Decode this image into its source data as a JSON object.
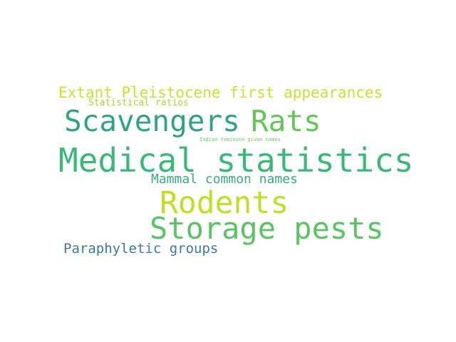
{
  "word_cloud": {
    "words": [
      {
        "text": "Extant Pleistocene first appearances",
        "color": "#c8df39"
      },
      {
        "text": "Statistical ratios",
        "color": "#a7d43e"
      },
      {
        "text": "Scavengers",
        "color": "#31a384"
      },
      {
        "text": "Rats",
        "color": "#67c45a"
      },
      {
        "text": "Indian feminine given names",
        "color": "#6fcb5b"
      },
      {
        "text": "Medical statistics",
        "color": "#3db779"
      },
      {
        "text": "Mammal common names",
        "color": "#3aa97f"
      },
      {
        "text": "Rodents",
        "color": "#bddf2a"
      },
      {
        "text": "Storage pests",
        "color": "#5cc266"
      },
      {
        "text": "Paraphyletic groups",
        "color": "#3f7a98"
      }
    ]
  }
}
